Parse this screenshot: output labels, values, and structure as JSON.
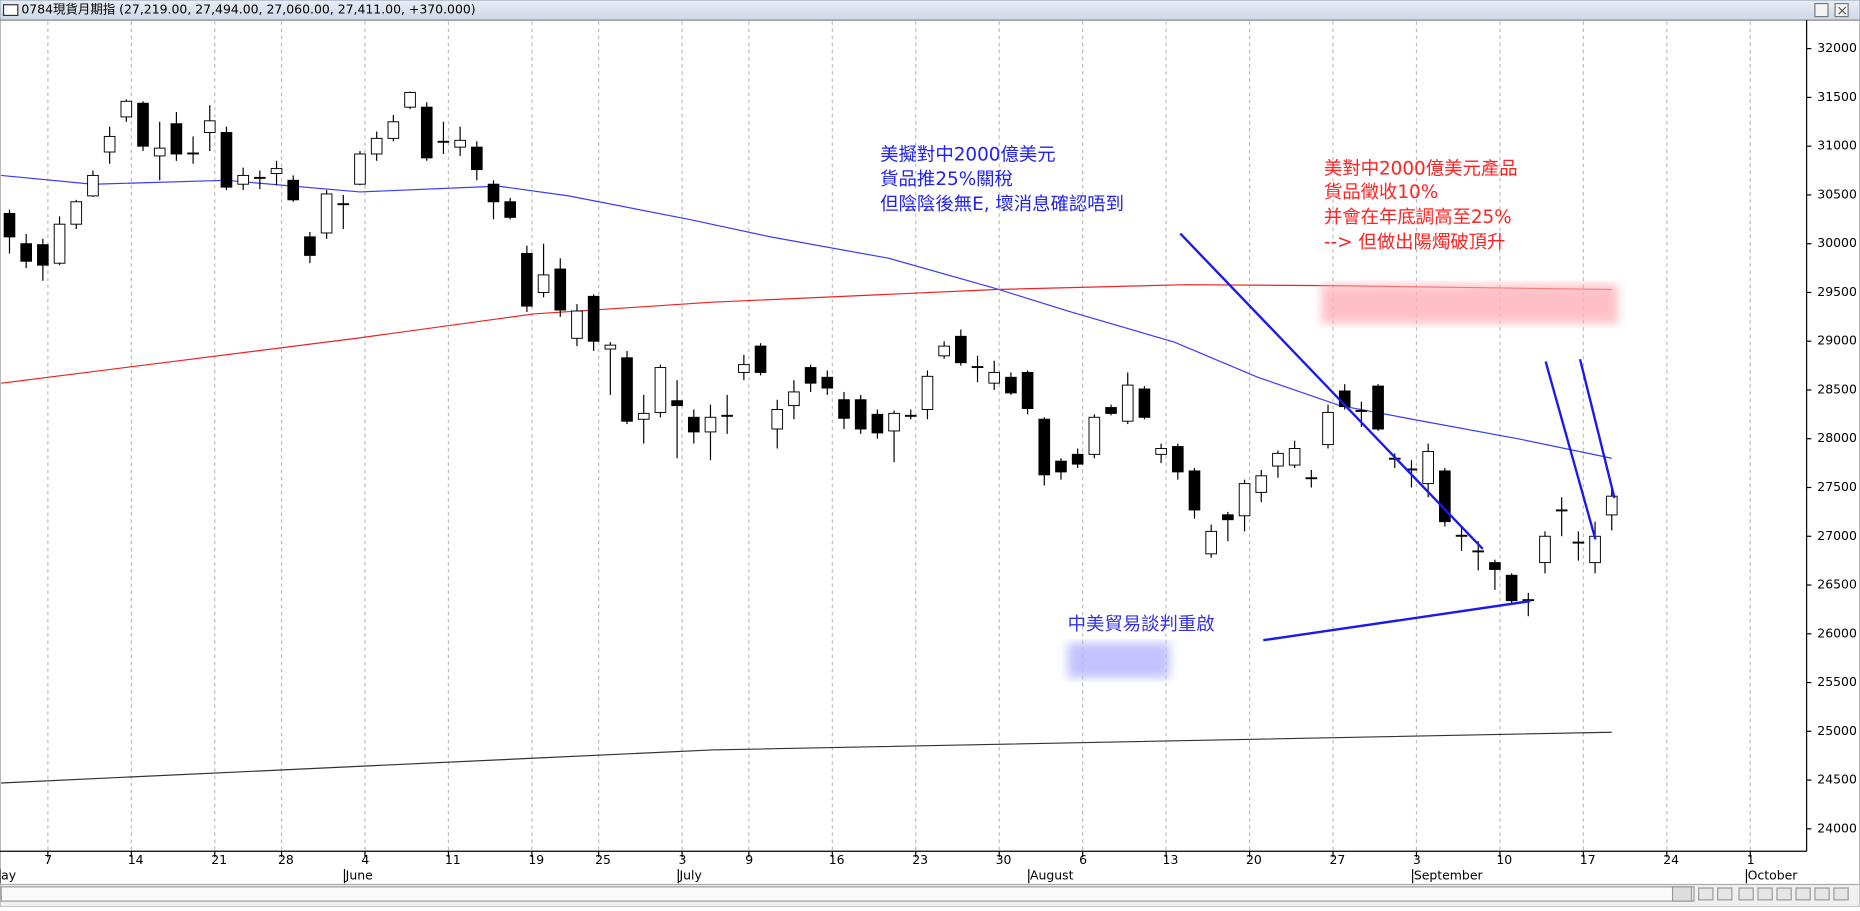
{
  "window": {
    "title": "0784現貨月期指 (27,219.00, 27,494.00, 27,060.00, 27,411.00, +370.000)"
  },
  "chart_data": {
    "type": "candlestick",
    "categories": [
      null,
      null,
      "7",
      null,
      null,
      null,
      null,
      "14",
      null,
      null,
      null,
      null,
      "21",
      null,
      null,
      null,
      "28",
      null,
      null,
      null,
      null,
      "4",
      null,
      null,
      null,
      null,
      "11",
      null,
      null,
      null,
      null,
      "19",
      null,
      null,
      null,
      "25",
      null,
      null,
      null,
      null,
      "3",
      null,
      null,
      null,
      "9",
      null,
      null,
      null,
      null,
      "16",
      null,
      null,
      null,
      null,
      "23",
      null,
      null,
      null,
      null,
      "30",
      null,
      null,
      null,
      null,
      "6",
      null,
      null,
      null,
      null,
      "13",
      null,
      null,
      null,
      null,
      "20",
      null,
      null,
      null,
      null,
      "27",
      null,
      null,
      null,
      null,
      "3",
      null,
      null,
      null,
      null,
      "10",
      null,
      null,
      null,
      null,
      "17",
      null,
      null,
      null,
      null,
      "24",
      null,
      null,
      null,
      null,
      "1"
    ],
    "months": [
      "ay",
      null,
      null,
      null,
      null,
      null,
      null,
      null,
      null,
      null,
      null,
      null,
      null,
      null,
      null,
      null,
      null,
      null,
      null,
      null,
      "June",
      null,
      null,
      null,
      null,
      null,
      null,
      null,
      null,
      null,
      null,
      null,
      null,
      null,
      null,
      null,
      null,
      null,
      null,
      null,
      "July",
      null,
      null,
      null,
      null,
      null,
      null,
      null,
      null,
      null,
      null,
      null,
      null,
      null,
      null,
      null,
      null,
      null,
      null,
      null,
      null,
      "August",
      null,
      null,
      null,
      null,
      null,
      null,
      null,
      null,
      null,
      null,
      null,
      null,
      null,
      null,
      null,
      null,
      null,
      null,
      null,
      null,
      null,
      null,
      "September",
      null,
      null,
      null,
      null,
      null,
      null,
      null,
      null,
      null,
      null,
      null,
      null,
      null,
      null,
      null,
      null,
      null,
      null,
      null,
      "October"
    ],
    "open": [
      30310,
      30000,
      29990,
      29800,
      30200,
      30490,
      30940,
      31300,
      31440,
      30900,
      31230,
      30920,
      31140,
      31140,
      30610,
      30670,
      30720,
      30650,
      30070,
      30110,
      30400,
      30610,
      30920,
      31080,
      31400,
      31400,
      31040,
      30990,
      30990,
      30610,
      30430,
      29900,
      29500,
      29740,
      29030,
      29460,
      28920,
      28830,
      28200,
      28270,
      28390,
      28220,
      28070,
      28230,
      28680,
      28950,
      28100,
      28340,
      28730,
      28630,
      28400,
      28400,
      28250,
      28080,
      28230,
      28300,
      28850,
      29050,
      28730,
      28570,
      28630,
      28680,
      28200,
      27770,
      27840,
      27840,
      28320,
      28180,
      28510,
      27840,
      27920,
      27670,
      26820,
      27220,
      27210,
      27450,
      27720,
      27730,
      27590,
      27940,
      28490,
      28280,
      28540,
      27790,
      27680,
      27540,
      27670,
      27000,
      26840,
      26730,
      26600,
      26340,
      26730,
      27260,
      26930,
      26730,
      27219,
      null,
      null,
      null,
      null,
      null,
      null,
      null,
      null
    ],
    "high": [
      30350,
      30100,
      30050,
      30280,
      30450,
      30750,
      31200,
      31480,
      31460,
      31250,
      31350,
      31100,
      31420,
      31200,
      30780,
      30750,
      30850,
      30700,
      30120,
      30550,
      30500,
      30950,
      31150,
      31320,
      31560,
      31450,
      31250,
      31200,
      31050,
      30650,
      30470,
      29980,
      30000,
      29850,
      29380,
      29480,
      28990,
      28900,
      28450,
      28760,
      28600,
      28300,
      28350,
      28450,
      28860,
      28980,
      28400,
      28600,
      28760,
      28700,
      28480,
      28450,
      28300,
      28290,
      28300,
      28700,
      29000,
      29120,
      28850,
      28800,
      28680,
      28700,
      28220,
      27800,
      27900,
      28250,
      28350,
      28680,
      28540,
      27950,
      27950,
      27700,
      27120,
      27250,
      27580,
      27680,
      27880,
      27980,
      27680,
      28350,
      28560,
      28380,
      28560,
      27850,
      27780,
      27950,
      27700,
      27100,
      26950,
      26760,
      26620,
      26420,
      27050,
      27400,
      27050,
      27150,
      27494,
      null,
      null,
      null,
      null,
      null,
      null,
      null,
      null
    ],
    "low": [
      29900,
      29750,
      29620,
      29780,
      30150,
      30480,
      30820,
      31250,
      30950,
      30650,
      30850,
      30820,
      30950,
      30550,
      30550,
      30560,
      30600,
      30430,
      29800,
      30050,
      30150,
      30600,
      30850,
      31050,
      31380,
      30850,
      30920,
      30900,
      30650,
      30250,
      30250,
      29300,
      29450,
      29250,
      28950,
      28900,
      28450,
      28150,
      27950,
      28220,
      27800,
      27950,
      27780,
      28050,
      28600,
      28650,
      27900,
      28200,
      28480,
      28450,
      28100,
      28050,
      28000,
      27760,
      28200,
      28200,
      28820,
      28750,
      28580,
      28500,
      28450,
      28250,
      27520,
      27580,
      27700,
      27800,
      28240,
      28150,
      28200,
      27750,
      27580,
      27180,
      26780,
      26950,
      27050,
      27350,
      27600,
      27700,
      27500,
      27900,
      28300,
      28120,
      28080,
      27700,
      27500,
      27400,
      27100,
      26850,
      26650,
      26450,
      26300,
      26180,
      26620,
      27000,
      26750,
      26620,
      27060,
      null,
      null,
      null,
      null,
      null,
      null,
      null,
      null
    ],
    "close": [
      30070,
      29820,
      29780,
      30200,
      30430,
      30700,
      31100,
      31460,
      31000,
      30980,
      30920,
      30930,
      31260,
      30580,
      30700,
      30680,
      30770,
      30450,
      29880,
      30510,
      30410,
      30920,
      31080,
      31250,
      31550,
      30880,
      31050,
      31060,
      30760,
      30430,
      30270,
      29360,
      29680,
      29320,
      29310,
      29000,
      28960,
      28180,
      28260,
      28730,
      28340,
      28070,
      28220,
      28240,
      28760,
      28680,
      28300,
      28480,
      28570,
      28520,
      28210,
      28100,
      28060,
      28260,
      28240,
      28640,
      28950,
      28780,
      28740,
      28680,
      28470,
      28310,
      27630,
      27660,
      27740,
      28220,
      28260,
      28550,
      28220,
      27900,
      27660,
      27270,
      27050,
      27170,
      27540,
      27620,
      27850,
      27900,
      27600,
      28270,
      28330,
      28290,
      28100,
      27800,
      27690,
      27870,
      27150,
      27010,
      26850,
      26660,
      26340,
      26350,
      27000,
      27270,
      26940,
      27000,
      27411,
      null,
      null,
      null,
      null,
      null,
      null,
      null,
      null
    ],
    "up_color": "#ffffff",
    "down_color": "#000000",
    "overlays": [
      {
        "color": "#3a3aff",
        "x": [
          -0.5,
          5,
          13,
          21,
          29.3,
          33.5,
          40.7,
          45.6,
          52.7,
          59.1,
          63.4,
          69.8,
          74.8,
          79.7,
          84.7,
          90.4,
          96
        ],
        "values": [
          30700,
          30610,
          30650,
          30530,
          30590,
          30490,
          30250,
          30070,
          29850,
          29540,
          29310,
          28990,
          28630,
          28340,
          28180,
          28000,
          27800
        ]
      },
      {
        "color": "#ee2222",
        "x": [
          -0.5,
          20.8,
          31.4,
          42.1,
          59.1,
          70.5,
          79,
          96
        ],
        "values": [
          28570,
          29030,
          29280,
          29400,
          29530,
          29580,
          29570,
          29530
        ]
      },
      {
        "color": "#333333",
        "x": [
          -0.5,
          42.1,
          96
        ],
        "values": [
          24470,
          24810,
          24990
        ]
      }
    ],
    "ylim": [
      23770,
      32280
    ],
    "yticks": [
      24000,
      24500,
      25000,
      25500,
      26000,
      26500,
      27000,
      27500,
      28000,
      28500,
      29000,
      29500,
      30000,
      30500,
      31000,
      31500,
      32000
    ],
    "grid": true,
    "annotations": [
      {
        "color": "#2222ee",
        "lines": [
          "美擬對中2000億美元",
          "貨品推25%關稅",
          "但陰陰後無E, 壞消息確認唔到"
        ]
      },
      {
        "color": "#ff2222",
        "lines": [
          "美對中2000億美元產品",
          "貨品徵收10%",
          "并會在年底調高至25%",
          "--> 但做出陽燭破頂升"
        ]
      },
      {
        "color": "#3333dd",
        "lines": [
          "中美貿易談判重啟"
        ]
      }
    ]
  }
}
